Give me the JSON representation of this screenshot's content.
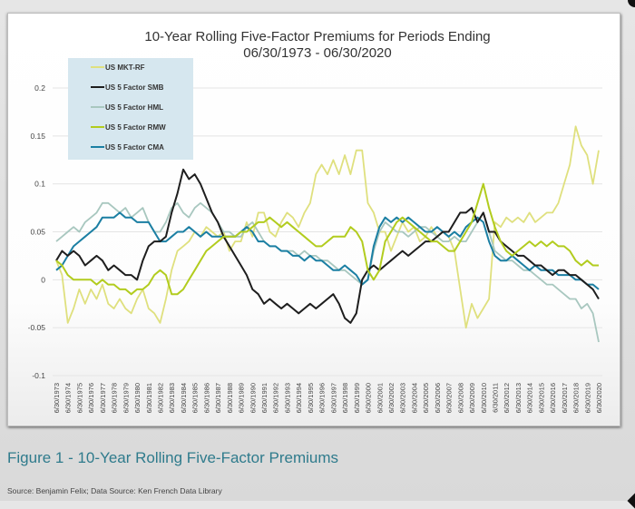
{
  "figure_caption": "Figure 1 - 10-Year Rolling Five-Factor Premiums",
  "source_note": "Source: Benjamin Felix; Data Source: Ken French Data Library",
  "chart_data": {
    "type": "line",
    "title": "10-Year Rolling Five-Factor Premiums for Periods Ending",
    "subtitle": "06/30/1973 - 06/30/2020",
    "xlabel": "",
    "ylabel": "",
    "ylim": [
      -0.1,
      0.2
    ],
    "yticks": [
      0.2,
      0.15,
      0.1,
      0.05,
      0,
      -0.05,
      -0.1
    ],
    "ytick_labels": [
      "0.2",
      "0.15",
      "0.1",
      "0.05",
      "0",
      "-0.05",
      "-0.1"
    ],
    "grid": true,
    "legend_position": "top-left",
    "x_tick_labels": [
      "6/30/1973",
      "6/30/1974",
      "6/30/1975",
      "6/30/1976",
      "6/30/1977",
      "6/30/1978",
      "6/30/1979",
      "6/30/1980",
      "6/30/1981",
      "6/30/1982",
      "6/30/1983",
      "6/30/1984",
      "6/30/1985",
      "6/30/1986",
      "6/30/1987",
      "6/30/1988",
      "6/30/1989",
      "6/30/1990",
      "6/30/1991",
      "6/30/1992",
      "6/30/1993",
      "6/30/1994",
      "6/30/1995",
      "6/30/1996",
      "6/30/1997",
      "6/30/1998",
      "6/30/1999",
      "6/30/2000",
      "6/30/2001",
      "6/30/2002",
      "6/30/2003",
      "6/30/2004",
      "6/30/2005",
      "6/30/2006",
      "6/30/2007",
      "6/30/2008",
      "6/30/2009",
      "6/30/2010",
      "6/30/2011",
      "6/30/2012",
      "6/30/2013",
      "6/30/2014",
      "6/30/2015",
      "6/30/2016",
      "6/30/2017",
      "6/30/2018",
      "6/30/2019",
      "6/30/2020"
    ],
    "x": [
      1973,
      1973.5,
      1974,
      1974.5,
      1975,
      1975.5,
      1976,
      1976.5,
      1977,
      1977.5,
      1978,
      1978.5,
      1979,
      1979.5,
      1980,
      1980.5,
      1981,
      1981.5,
      1982,
      1982.5,
      1983,
      1983.5,
      1984,
      1984.5,
      1985,
      1985.5,
      1986,
      1986.5,
      1987,
      1987.5,
      1988,
      1988.5,
      1989,
      1989.5,
      1990,
      1990.5,
      1991,
      1991.5,
      1992,
      1992.5,
      1993,
      1993.5,
      1994,
      1994.5,
      1995,
      1995.5,
      1996,
      1996.5,
      1997,
      1997.5,
      1998,
      1998.5,
      1999,
      1999.5,
      2000,
      2000.5,
      2001,
      2001.5,
      2002,
      2002.5,
      2003,
      2003.5,
      2004,
      2004.5,
      2005,
      2005.5,
      2006,
      2006.5,
      2007,
      2007.5,
      2008,
      2008.5,
      2009,
      2009.5,
      2010,
      2010.5,
      2011,
      2011.5,
      2012,
      2012.5,
      2013,
      2013.5,
      2014,
      2014.5,
      2015,
      2015.5,
      2016,
      2016.5,
      2017,
      2017.5,
      2018,
      2018.5,
      2019,
      2019.5,
      2020
    ],
    "series": [
      {
        "name": "US MKT-RF",
        "color": "#dfe07e",
        "values": [
          0.02,
          0.005,
          -0.045,
          -0.03,
          -0.01,
          -0.025,
          -0.01,
          -0.02,
          -0.005,
          -0.025,
          -0.03,
          -0.02,
          -0.03,
          -0.035,
          -0.02,
          -0.01,
          -0.03,
          -0.035,
          -0.045,
          -0.02,
          0.01,
          0.03,
          0.035,
          0.04,
          0.05,
          0.045,
          0.055,
          0.05,
          0.045,
          0.05,
          0.03,
          0.04,
          0.04,
          0.06,
          0.045,
          0.07,
          0.07,
          0.05,
          0.045,
          0.06,
          0.07,
          0.065,
          0.055,
          0.07,
          0.08,
          0.11,
          0.12,
          0.11,
          0.125,
          0.11,
          0.13,
          0.11,
          0.135,
          0.135,
          0.08,
          0.07,
          0.05,
          0.05,
          0.03,
          0.045,
          0.06,
          0.05,
          0.055,
          0.04,
          0.045,
          0.055,
          0.045,
          0.05,
          0.045,
          0.03,
          -0.01,
          -0.05,
          -0.025,
          -0.04,
          -0.03,
          -0.02,
          0.06,
          0.055,
          0.065,
          0.06,
          0.065,
          0.06,
          0.07,
          0.06,
          0.065,
          0.07,
          0.07,
          0.08,
          0.1,
          0.12,
          0.16,
          0.14,
          0.13,
          0.1,
          0.135
        ]
      },
      {
        "name": "US 5 Factor SMB",
        "color": "#1e1e1e",
        "values": [
          0.02,
          0.03,
          0.025,
          0.03,
          0.025,
          0.015,
          0.02,
          0.025,
          0.02,
          0.01,
          0.015,
          0.01,
          0.005,
          0.005,
          0.0,
          0.02,
          0.035,
          0.04,
          0.04,
          0.045,
          0.07,
          0.09,
          0.115,
          0.105,
          0.11,
          0.1,
          0.085,
          0.07,
          0.06,
          0.045,
          0.035,
          0.025,
          0.015,
          0.005,
          -0.01,
          -0.015,
          -0.025,
          -0.02,
          -0.025,
          -0.03,
          -0.025,
          -0.03,
          -0.035,
          -0.03,
          -0.025,
          -0.03,
          -0.025,
          -0.02,
          -0.015,
          -0.025,
          -0.04,
          -0.045,
          -0.035,
          0.0,
          0.01,
          0.015,
          0.01,
          0.015,
          0.02,
          0.025,
          0.03,
          0.025,
          0.03,
          0.035,
          0.04,
          0.04,
          0.045,
          0.05,
          0.05,
          0.06,
          0.07,
          0.07,
          0.075,
          0.06,
          0.07,
          0.05,
          0.05,
          0.04,
          0.035,
          0.03,
          0.025,
          0.025,
          0.02,
          0.015,
          0.015,
          0.01,
          0.005,
          0.01,
          0.01,
          0.005,
          0.005,
          0.0,
          -0.005,
          -0.01,
          -0.02
        ]
      },
      {
        "name": "US 5 Factor HML",
        "color": "#a8c7bf",
        "values": [
          0.04,
          0.045,
          0.05,
          0.055,
          0.05,
          0.06,
          0.065,
          0.07,
          0.08,
          0.08,
          0.075,
          0.07,
          0.075,
          0.065,
          0.07,
          0.075,
          0.06,
          0.05,
          0.05,
          0.06,
          0.075,
          0.08,
          0.07,
          0.065,
          0.075,
          0.08,
          0.075,
          0.07,
          0.06,
          0.05,
          0.05,
          0.045,
          0.045,
          0.055,
          0.06,
          0.05,
          0.04,
          0.035,
          0.035,
          0.03,
          0.03,
          0.03,
          0.025,
          0.03,
          0.025,
          0.025,
          0.02,
          0.02,
          0.015,
          0.01,
          0.01,
          0.005,
          0.0,
          -0.005,
          0.0,
          0.03,
          0.05,
          0.06,
          0.055,
          0.05,
          0.05,
          0.045,
          0.05,
          0.055,
          0.055,
          0.05,
          0.045,
          0.04,
          0.04,
          0.045,
          0.04,
          0.04,
          0.05,
          0.06,
          0.07,
          0.05,
          0.03,
          0.025,
          0.02,
          0.02,
          0.015,
          0.01,
          0.01,
          0.005,
          0.0,
          -0.005,
          -0.005,
          -0.01,
          -0.015,
          -0.02,
          -0.02,
          -0.03,
          -0.025,
          -0.035,
          -0.065
        ]
      },
      {
        "name": "US 5 Factor RMW",
        "color": "#b2cc1e",
        "values": [
          0.02,
          0.015,
          0.005,
          0.0,
          0.0,
          0.0,
          0.0,
          -0.005,
          0.0,
          -0.005,
          -0.005,
          -0.01,
          -0.01,
          -0.015,
          -0.01,
          -0.01,
          -0.005,
          0.005,
          0.01,
          0.005,
          -0.015,
          -0.015,
          -0.01,
          0.0,
          0.01,
          0.02,
          0.03,
          0.035,
          0.04,
          0.045,
          0.045,
          0.045,
          0.05,
          0.05,
          0.055,
          0.06,
          0.06,
          0.065,
          0.06,
          0.055,
          0.06,
          0.055,
          0.05,
          0.045,
          0.04,
          0.035,
          0.035,
          0.04,
          0.045,
          0.045,
          0.045,
          0.055,
          0.05,
          0.04,
          0.01,
          0.0,
          0.01,
          0.04,
          0.05,
          0.06,
          0.065,
          0.06,
          0.055,
          0.05,
          0.045,
          0.04,
          0.04,
          0.035,
          0.03,
          0.03,
          0.04,
          0.05,
          0.06,
          0.08,
          0.1,
          0.075,
          0.055,
          0.04,
          0.03,
          0.025,
          0.03,
          0.035,
          0.04,
          0.035,
          0.04,
          0.035,
          0.04,
          0.035,
          0.035,
          0.03,
          0.02,
          0.015,
          0.02,
          0.015,
          0.015
        ]
      },
      {
        "name": "US 5 Factor CMA",
        "color": "#1b7fa3",
        "values": [
          0.01,
          0.015,
          0.025,
          0.035,
          0.04,
          0.045,
          0.05,
          0.055,
          0.065,
          0.065,
          0.065,
          0.07,
          0.065,
          0.065,
          0.06,
          0.06,
          0.06,
          0.05,
          0.04,
          0.04,
          0.045,
          0.05,
          0.05,
          0.055,
          0.05,
          0.045,
          0.05,
          0.045,
          0.045,
          0.045,
          0.045,
          0.045,
          0.05,
          0.055,
          0.05,
          0.04,
          0.04,
          0.035,
          0.035,
          0.03,
          0.03,
          0.025,
          0.025,
          0.02,
          0.025,
          0.02,
          0.02,
          0.015,
          0.01,
          0.01,
          0.015,
          0.01,
          0.005,
          -0.005,
          0.0,
          0.035,
          0.055,
          0.065,
          0.06,
          0.065,
          0.06,
          0.065,
          0.06,
          0.055,
          0.05,
          0.05,
          0.055,
          0.05,
          0.045,
          0.05,
          0.045,
          0.055,
          0.06,
          0.065,
          0.06,
          0.04,
          0.025,
          0.02,
          0.02,
          0.025,
          0.02,
          0.015,
          0.01,
          0.015,
          0.01,
          0.01,
          0.01,
          0.005,
          0.005,
          0.005,
          0.0,
          0.0,
          -0.005,
          -0.005,
          -0.01
        ]
      }
    ]
  }
}
